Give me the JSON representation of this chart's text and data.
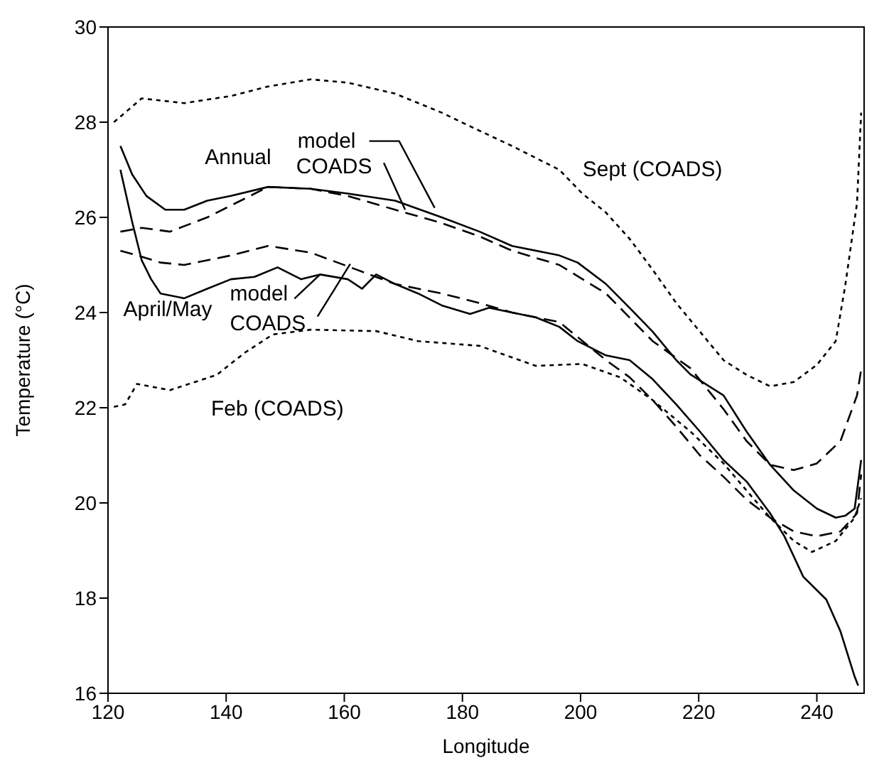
{
  "chart_data": {
    "type": "line",
    "xlabel": "Longitude",
    "ylabel": "Temperature (°C)",
    "xlim": [
      120,
      248
    ],
    "ylim": [
      16,
      30
    ],
    "xticks": [
      120,
      140,
      160,
      180,
      200,
      220,
      240
    ],
    "yticks": [
      16,
      18,
      20,
      22,
      24,
      26,
      28,
      30
    ],
    "series": [
      {
        "line_style": "dotted",
        "color": "#000000",
        "x": [
          121,
          125.7,
          132.9,
          140.8,
          147.1,
          154.3,
          160.6,
          168.6,
          176.5,
          180.5,
          188.4,
          196.4,
          200.3,
          204.3,
          208.3,
          212.2,
          216.2,
          220.2,
          224.2,
          228.1,
          232.1,
          236.1,
          240,
          243.2,
          244.8,
          246.8,
          247.5
        ],
        "values": [
          28.0,
          28.5,
          28.4,
          28.55,
          28.75,
          28.9,
          28.83,
          28.6,
          28.2,
          27.96,
          27.5,
          27.0,
          26.5,
          26.1,
          25.55,
          24.9,
          24.2,
          23.6,
          23.0,
          22.69,
          22.45,
          22.54,
          22.9,
          23.4,
          24.56,
          26.3,
          28.2
        ]
      },
      {
        "line_style": "solid",
        "color": "#000000",
        "x": [
          122.1,
          124.1,
          126.5,
          129.7,
          132.9,
          136.8,
          140.8,
          147.1,
          154.3,
          160.6,
          168.6,
          176.5,
          182.9,
          188.4,
          196.4,
          199.5,
          204.3,
          208.3,
          212.2,
          216.2,
          218.6,
          224.2,
          228.1,
          232.1,
          236.1,
          240,
          243.2,
          244.8,
          246.4,
          247.5
        ],
        "values": [
          27.5,
          26.9,
          26.45,
          26.16,
          26.16,
          26.35,
          26.45,
          26.64,
          26.6,
          26.5,
          26.35,
          26.0,
          25.7,
          25.4,
          25.2,
          25.05,
          24.6,
          24.1,
          23.6,
          23.0,
          22.7,
          22.26,
          21.5,
          20.8,
          20.26,
          19.88,
          19.69,
          19.73,
          19.88,
          20.9
        ]
      },
      {
        "line_style": "dashed",
        "color": "#000000",
        "x": [
          122.1,
          125.7,
          130.5,
          136.8,
          147.1,
          154.3,
          160.6,
          168.6,
          176.5,
          182.9,
          188.4,
          196.4,
          204.3,
          212.2,
          218.6,
          224.2,
          228.1,
          232.1,
          236.1,
          240,
          244,
          246.8,
          247.5
        ],
        "values": [
          25.7,
          25.78,
          25.7,
          26.0,
          26.64,
          26.6,
          26.45,
          26.16,
          25.88,
          25.6,
          25.3,
          25.0,
          24.4,
          23.4,
          22.83,
          21.97,
          21.3,
          20.8,
          20.69,
          20.83,
          21.3,
          22.26,
          22.8
        ]
      },
      {
        "line_style": "solid",
        "color": "#000000",
        "x": [
          122.1,
          124.1,
          125.7,
          127.3,
          128.9,
          132.9,
          136.8,
          140.8,
          144.8,
          148.7,
          152.7,
          155.9,
          160.6,
          163,
          165.4,
          168.6,
          172.5,
          176.5,
          181.3,
          184.5,
          188.4,
          192.4,
          196.4,
          199.5,
          204.3,
          208.3,
          212.2,
          216.2,
          220.2,
          224.2,
          228.1,
          232.1,
          234.5,
          237.7,
          241.6,
          244,
          246.4,
          247
        ],
        "values": [
          27.0,
          25.9,
          25.1,
          24.7,
          24.4,
          24.3,
          24.5,
          24.7,
          24.75,
          24.95,
          24.7,
          24.8,
          24.7,
          24.5,
          24.8,
          24.6,
          24.4,
          24.15,
          23.97,
          24.1,
          24.0,
          23.9,
          23.7,
          23.4,
          23.1,
          23.0,
          22.6,
          22.07,
          21.5,
          20.9,
          20.45,
          19.78,
          19.3,
          18.45,
          17.97,
          17.3,
          16.35,
          16.16
        ]
      },
      {
        "line_style": "dashed",
        "color": "#000000",
        "x": [
          122.1,
          125,
          128.9,
          132.9,
          140.8,
          147.1,
          154.3,
          160.6,
          168.6,
          176.5,
          182.9,
          188.4,
          196.4,
          204.3,
          208.3,
          212.2,
          216.2,
          220.2,
          224.2,
          228.1,
          232.1,
          236.1,
          240,
          244,
          246.8,
          247.5
        ],
        "values": [
          25.3,
          25.2,
          25.05,
          25.0,
          25.2,
          25.4,
          25.26,
          24.97,
          24.6,
          24.4,
          24.2,
          24.0,
          23.8,
          23.0,
          22.64,
          22.16,
          21.6,
          21.0,
          20.55,
          20.07,
          19.69,
          19.4,
          19.3,
          19.4,
          19.78,
          20.6
        ]
      },
      {
        "line_style": "dotted",
        "color": "#000000",
        "x": [
          121,
          122.9,
          124.9,
          130.5,
          138.4,
          143.2,
          147.9,
          154.3,
          165.4,
          172.5,
          182.9,
          192.4,
          200.3,
          206.7,
          212.2,
          218.6,
          224.2,
          228.1,
          232.1,
          236.1,
          239.2,
          243.2,
          246.4,
          247.5
        ],
        "values": [
          22.02,
          22.07,
          22.5,
          22.37,
          22.69,
          23.16,
          23.54,
          23.64,
          23.61,
          23.4,
          23.3,
          22.88,
          22.92,
          22.64,
          22.16,
          21.5,
          20.83,
          20.26,
          19.69,
          19.2,
          18.97,
          19.2,
          19.69,
          20.1
        ]
      }
    ],
    "annotations": [
      "Annual",
      {
        "text": "model",
        "x": 175.3,
        "y": 26.2
      },
      {
        "text": "COADS",
        "x": 170.3,
        "y": 26.16
      },
      "April/May",
      {
        "text": "model",
        "x": 155.9,
        "y": 24.8
      },
      {
        "text": "COADS",
        "x": 161,
        "y": 25.02
      },
      "Sept (COADS)",
      "Feb (COADS)"
    ]
  }
}
